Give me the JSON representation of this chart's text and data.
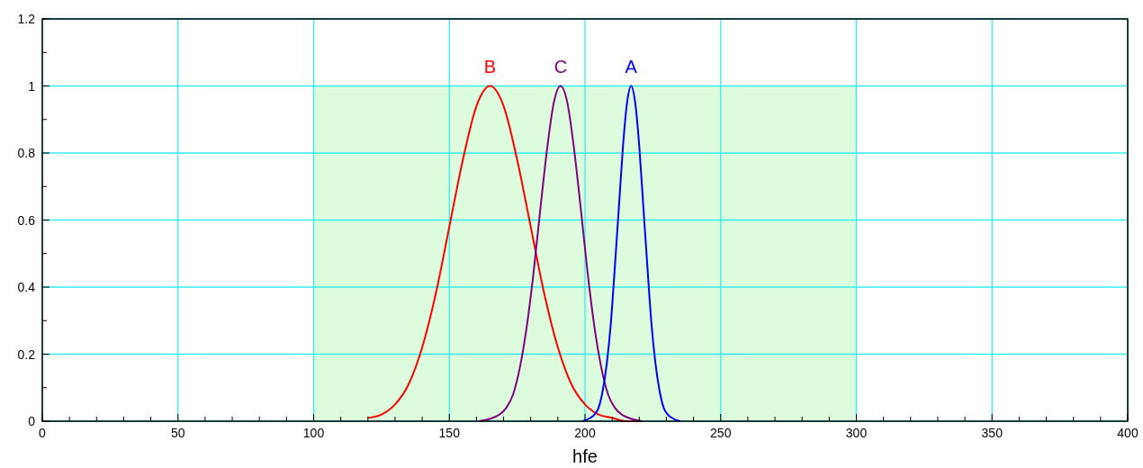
{
  "chart_data": {
    "type": "line",
    "xlabel": "hfe",
    "xlim": [
      0,
      400
    ],
    "ylim": [
      0,
      1.2
    ],
    "xticks": [
      0,
      {
        "value": 10,
        "label": null
      },
      {
        "value": 20,
        "label": null
      },
      {
        "value": 30,
        "label": null
      },
      {
        "value": 40,
        "label": null
      },
      50,
      {
        "value": 60,
        "label": null
      },
      {
        "value": 70,
        "label": null
      },
      {
        "value": 80,
        "label": null
      },
      {
        "value": 90,
        "label": null
      },
      100,
      {
        "value": 110,
        "label": null
      },
      {
        "value": 120,
        "label": null
      },
      {
        "value": 130,
        "label": null
      },
      {
        "value": 140,
        "label": null
      },
      150,
      {
        "value": 160,
        "label": null
      },
      {
        "value": 170,
        "label": null
      },
      {
        "value": 180,
        "label": null
      },
      {
        "value": 190,
        "label": null
      },
      200,
      {
        "value": 210,
        "label": null
      },
      {
        "value": 220,
        "label": null
      },
      {
        "value": 230,
        "label": null
      },
      {
        "value": 240,
        "label": null
      },
      250,
      {
        "value": 260,
        "label": null
      },
      {
        "value": 270,
        "label": null
      },
      {
        "value": 280,
        "label": null
      },
      {
        "value": 290,
        "label": null
      },
      300,
      {
        "value": 310,
        "label": null
      },
      {
        "value": 320,
        "label": null
      },
      {
        "value": 330,
        "label": null
      },
      {
        "value": 340,
        "label": null
      },
      350,
      {
        "value": 360,
        "label": null
      },
      {
        "value": 370,
        "label": null
      },
      {
        "value": 380,
        "label": null
      },
      {
        "value": 390,
        "label": null
      },
      400
    ],
    "yticks": [
      0,
      {
        "value": 0.1,
        "label": null
      },
      0.2,
      {
        "value": 0.3,
        "label": null
      },
      0.4,
      {
        "value": 0.5,
        "label": null
      },
      0.6,
      {
        "value": 0.7,
        "label": null
      },
      0.8,
      {
        "value": 0.9,
        "label": null
      },
      1,
      {
        "value": 1.1,
        "label": null
      },
      1.2
    ],
    "grid": true,
    "marker": "none",
    "line_style": "solid",
    "bands": [
      {
        "axis": "x",
        "from": 100,
        "to": 300,
        "color": "#ddfcdd"
      }
    ],
    "series": [
      {
        "name": "B",
        "color": "#ff0000",
        "x": [
          120,
          125,
          130,
          135,
          140,
          145,
          150,
          155,
          160,
          165,
          170,
          175,
          180,
          185,
          190,
          195,
          200,
          205,
          210,
          215,
          220
        ],
        "values": [
          0.01,
          0.02,
          0.05,
          0.11,
          0.22,
          0.38,
          0.58,
          0.78,
          0.94,
          1,
          0.94,
          0.78,
          0.58,
          0.38,
          0.22,
          0.11,
          0.05,
          0.02,
          0.01,
          0,
          0
        ]
      },
      {
        "name": "C",
        "color": "#800080",
        "x": [
          161,
          166,
          168.5,
          171,
          173.5,
          176,
          178.5,
          181,
          183.5,
          186,
          188.5,
          191,
          193.5,
          196,
          198.5,
          201,
          203.5,
          206,
          208.5,
          211,
          213.5,
          216,
          221
        ],
        "values": [
          0,
          0.01,
          0.02,
          0.04,
          0.08,
          0.16,
          0.28,
          0.44,
          0.63,
          0.81,
          0.95,
          1,
          0.95,
          0.81,
          0.63,
          0.44,
          0.28,
          0.16,
          0.08,
          0.04,
          0.02,
          0.01,
          0
        ]
      },
      {
        "name": "A",
        "color": "#0000ff",
        "x": [
          199,
          202,
          203.5,
          205,
          206.5,
          208,
          209.5,
          211,
          212.5,
          214,
          215.5,
          217,
          218.5,
          220,
          221.5,
          223,
          224.5,
          226,
          227.5,
          229,
          230.5,
          232,
          235
        ],
        "values": [
          0,
          0.01,
          0.02,
          0.04,
          0.09,
          0.17,
          0.29,
          0.46,
          0.64,
          0.82,
          0.95,
          1,
          0.95,
          0.82,
          0.64,
          0.46,
          0.29,
          0.17,
          0.09,
          0.04,
          0.02,
          0.01,
          0
        ]
      }
    ]
  }
}
